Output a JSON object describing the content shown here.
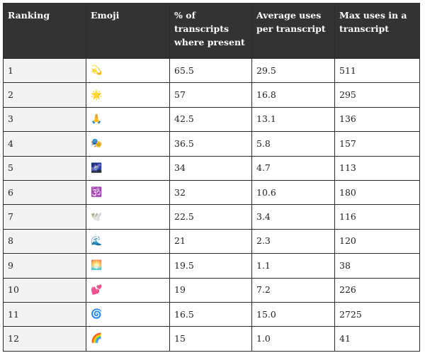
{
  "table": {
    "headers": [
      "Ranking",
      "Emoji",
      "% of transcripts where present",
      "Average uses per transcript",
      "Max uses in a transcript"
    ],
    "rows": [
      {
        "ranking": "1",
        "emoji": "💫",
        "pct": "65.5",
        "avg": "29.5",
        "max": "511"
      },
      {
        "ranking": "2",
        "emoji": "🌟",
        "pct": "57",
        "avg": "16.8",
        "max": "295"
      },
      {
        "ranking": "3",
        "emoji": "🙏",
        "pct": "42.5",
        "avg": "13.1",
        "max": "136"
      },
      {
        "ranking": "4",
        "emoji": "🎭",
        "pct": "36.5",
        "avg": "5.8",
        "max": "157"
      },
      {
        "ranking": "5",
        "emoji": "🌌",
        "pct": "34",
        "avg": "4.7",
        "max": "113"
      },
      {
        "ranking": "6",
        "emoji": "🕉️",
        "pct": "32",
        "avg": "10.6",
        "max": "180"
      },
      {
        "ranking": "7",
        "emoji": "🕊️",
        "pct": "22.5",
        "avg": "3.4",
        "max": "116"
      },
      {
        "ranking": "8",
        "emoji": "🌊",
        "pct": "21",
        "avg": "2.3",
        "max": "120"
      },
      {
        "ranking": "9",
        "emoji": "🌅",
        "pct": "19.5",
        "avg": "1.1",
        "max": "38"
      },
      {
        "ranking": "10",
        "emoji": "💕",
        "pct": "19",
        "avg": "7.2",
        "max": "226"
      },
      {
        "ranking": "11",
        "emoji": "🌀",
        "pct": "16.5",
        "avg": "15.0",
        "max": "2725"
      },
      {
        "ranking": "12",
        "emoji": "🌈",
        "pct": "15",
        "avg": "1.0",
        "max": "41"
      }
    ]
  }
}
